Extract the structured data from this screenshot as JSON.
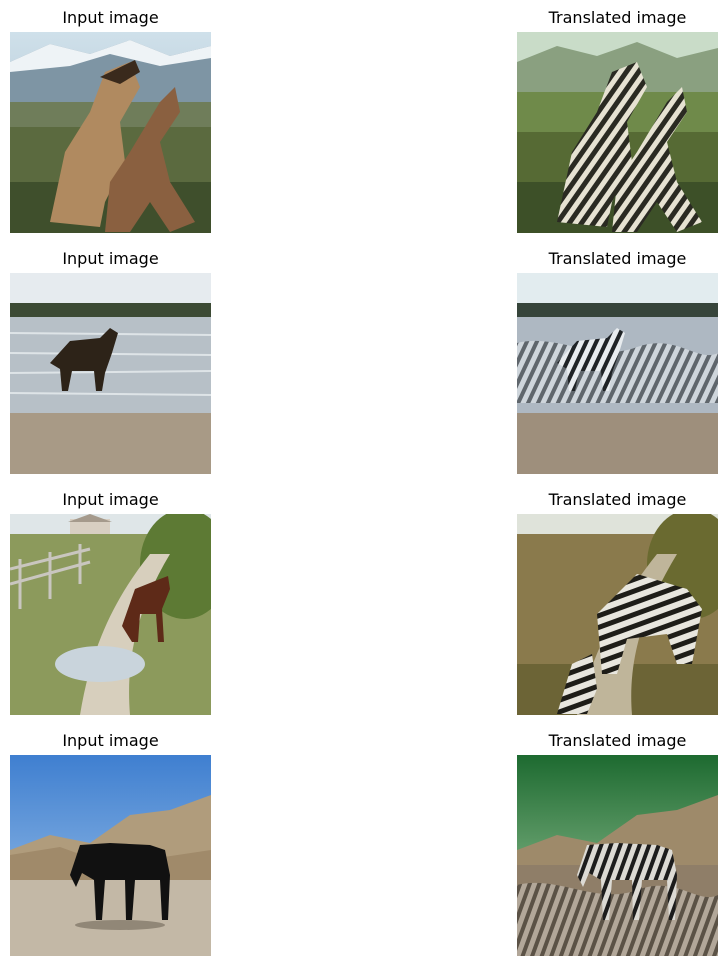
{
  "rows": [
    {
      "input": {
        "title": "Input image",
        "scene": "two-horses-rearing-mountains"
      },
      "output": {
        "title": "Translated image",
        "scene": "two-zebras-rearing-mountains"
      }
    },
    {
      "input": {
        "title": "Input image",
        "scene": "horse-standing-in-shallow-water"
      },
      "output": {
        "title": "Translated image",
        "scene": "zebra-standing-in-shallow-water"
      }
    },
    {
      "input": {
        "title": "Input image",
        "scene": "brown-horse-grazing-by-puddle"
      },
      "output": {
        "title": "Translated image",
        "scene": "zebra-grazing-by-puddle"
      }
    },
    {
      "input": {
        "title": "Input image",
        "scene": "black-horse-on-dirt-road"
      },
      "output": {
        "title": "Translated image",
        "scene": "zebra-on-dirt-road"
      }
    }
  ]
}
